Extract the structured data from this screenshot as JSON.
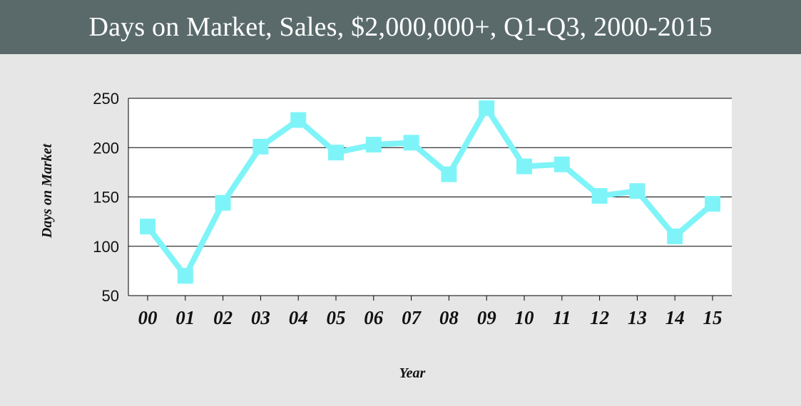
{
  "header": {
    "title": "Days on Market, Sales, $2,000,000+, Q1-Q3, 2000-2015"
  },
  "colors": {
    "header_bg": "#5a6a6b",
    "background": "#e6e6e6",
    "series": "#7ff4f8",
    "plot_bg": "#ffffff",
    "grid": "#000000"
  },
  "chart_data": {
    "type": "line",
    "title": "Days on Market, Sales, $2,000,000+, Q1-Q3, 2000-2015",
    "xlabel": "Year",
    "ylabel": "Days on Market",
    "ylim": [
      50,
      250
    ],
    "yticks": [
      "50",
      "100",
      "150",
      "200",
      "250"
    ],
    "grid": "horizontal",
    "categories": [
      "00",
      "01",
      "02",
      "03",
      "04",
      "05",
      "06",
      "07",
      "08",
      "09",
      "10",
      "11",
      "12",
      "13",
      "14",
      "15"
    ],
    "series": [
      {
        "values": [
          120,
          70,
          144,
          201,
          228,
          195,
          203,
          205,
          173,
          240,
          181,
          183,
          151,
          156,
          110,
          143
        ]
      }
    ]
  }
}
